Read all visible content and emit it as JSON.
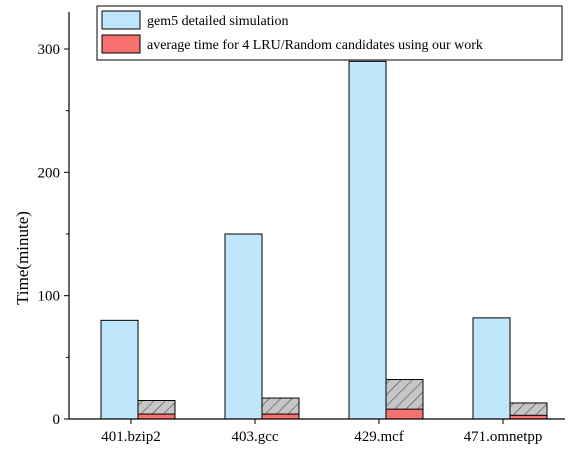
{
  "chart_data": {
    "type": "bar",
    "title": "",
    "xlabel": "",
    "ylabel": "Time(minute)",
    "ylim": [
      0,
      330
    ],
    "yticks": [
      0,
      100,
      200,
      300
    ],
    "grid": false,
    "legend_position": "top",
    "categories": [
      "401.bzip2",
      "403.gcc",
      "429.mcf",
      "471.omnetpp"
    ],
    "series": [
      {
        "name": "gem5 detailed simulation",
        "color": "#bfe6fb",
        "values": [
          80,
          150,
          290,
          82
        ]
      },
      {
        "name": "average time for 4 LRU/Random candidates using our work",
        "color": "#f87171",
        "stack_total": [
          15,
          17,
          32,
          13
        ],
        "values": [
          4,
          4,
          8,
          3
        ]
      }
    ],
    "hatch_segment_color": "#c4c4c4"
  }
}
